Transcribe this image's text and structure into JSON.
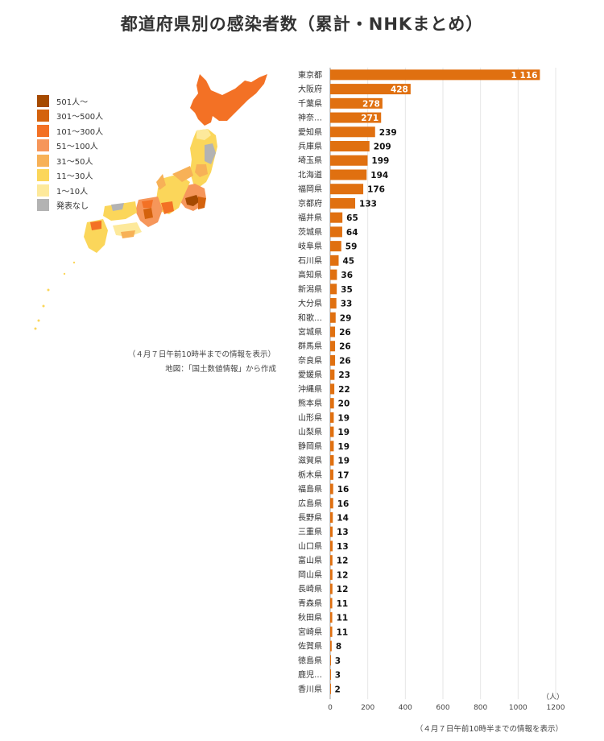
{
  "title": "都道府県別の感染者数（累計・NHKまとめ）",
  "colors": {
    "bar": "#e07010",
    "grid": "#e6e6e6",
    "axis": "#999999"
  },
  "legend": [
    {
      "label": "501人〜",
      "color": "#a64a00"
    },
    {
      "label": "301〜500人",
      "color": "#d4620d"
    },
    {
      "label": "101〜300人",
      "color": "#f37125"
    },
    {
      "label": "51〜100人",
      "color": "#f6965a"
    },
    {
      "label": "31〜50人",
      "color": "#f7b157"
    },
    {
      "label": "11〜30人",
      "color": "#fbd65a"
    },
    {
      "label": "1〜10人",
      "color": "#fde99b"
    },
    {
      "label": "発表なし",
      "color": "#b3b3b3"
    }
  ],
  "map_notes": {
    "line1": "（４月７日午前10時半までの情報を表示）",
    "line2": "地図：「国土数値情報」から作成"
  },
  "chart_note": "（４月７日午前10時半までの情報を表示）",
  "chart_data": {
    "type": "bar",
    "orientation": "horizontal",
    "categories": [
      "東京都",
      "大阪府",
      "千葉県",
      "神奈…",
      "愛知県",
      "兵庫県",
      "埼玉県",
      "北海道",
      "福岡県",
      "京都府",
      "福井県",
      "茨城県",
      "岐阜県",
      "石川県",
      "高知県",
      "新潟県",
      "大分県",
      "和歌…",
      "宮城県",
      "群馬県",
      "奈良県",
      "愛媛県",
      "沖縄県",
      "熊本県",
      "山形県",
      "山梨県",
      "静岡県",
      "滋賀県",
      "栃木県",
      "福島県",
      "広島県",
      "長野県",
      "三重県",
      "山口県",
      "富山県",
      "岡山県",
      "長崎県",
      "青森県",
      "秋田県",
      "宮崎県",
      "佐賀県",
      "徳島県",
      "鹿児…",
      "香川県"
    ],
    "values": [
      1116,
      428,
      278,
      271,
      239,
      209,
      199,
      194,
      176,
      133,
      65,
      64,
      59,
      45,
      36,
      35,
      33,
      29,
      26,
      26,
      26,
      23,
      22,
      20,
      19,
      19,
      19,
      19,
      17,
      16,
      16,
      14,
      13,
      13,
      12,
      12,
      12,
      11,
      11,
      11,
      8,
      3,
      3,
      2
    ],
    "value_labels": [
      "1 116",
      "428",
      "278",
      "271",
      "239",
      "209",
      "199",
      "194",
      "176",
      "133",
      "65",
      "64",
      "59",
      "45",
      "36",
      "35",
      "33",
      "29",
      "26",
      "26",
      "26",
      "23",
      "22",
      "20",
      "19",
      "19",
      "19",
      "19",
      "17",
      "16",
      "16",
      "14",
      "13",
      "13",
      "12",
      "12",
      "12",
      "11",
      "11",
      "11",
      "8",
      "3",
      "3",
      "2"
    ],
    "xlim": [
      0,
      1200
    ],
    "xticks": [
      0,
      200,
      400,
      600,
      800,
      1000,
      1200
    ],
    "unit_label": "（人）",
    "grid": true
  }
}
